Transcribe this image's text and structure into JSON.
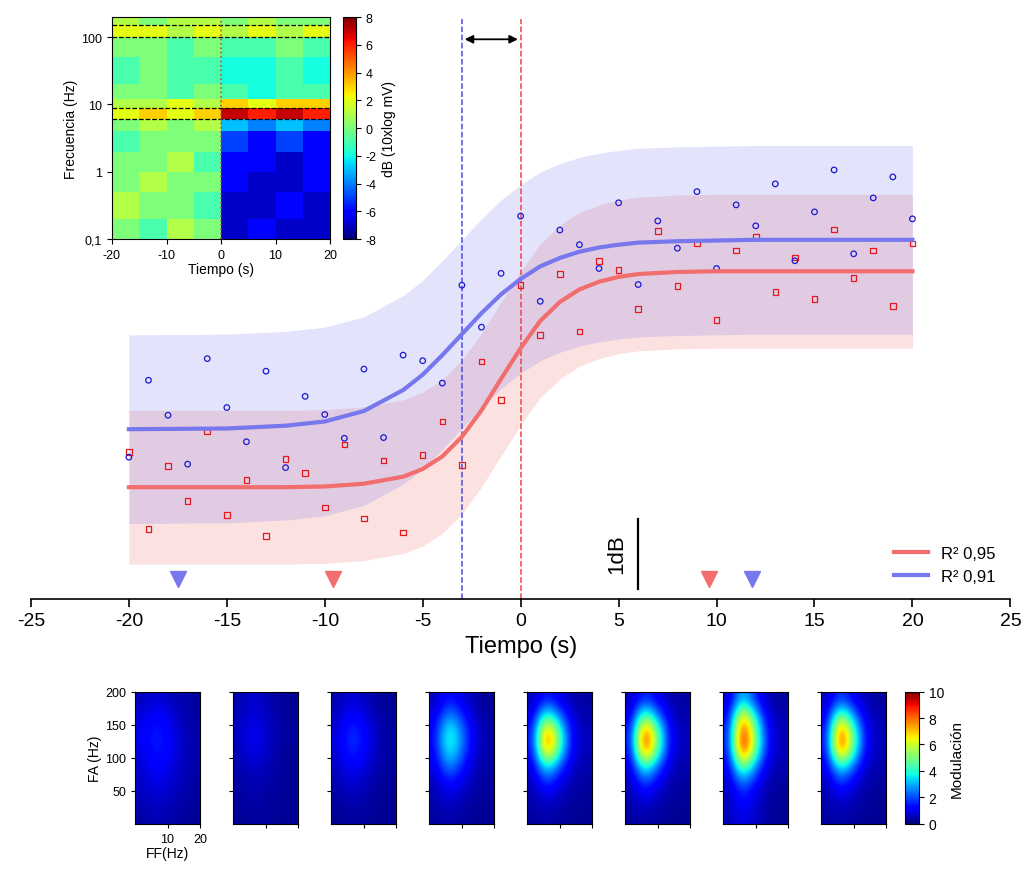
{
  "chart_data": [
    {
      "type": "scatter",
      "xlabel": "Tiempo (s)",
      "xlim": [
        -25,
        25
      ],
      "xticks": [
        -25,
        -20,
        -15,
        -10,
        -5,
        0,
        5,
        10,
        15,
        20,
        25
      ],
      "ylim": [
        0,
        8.3
      ],
      "tick_labels": "x",
      "legend": "lower right",
      "series": [
        {
          "type": "scatter",
          "color": "#e41a1c",
          "marker": "square",
          "x": [
            -20,
            -19,
            -18,
            -17,
            -16,
            -15,
            -14,
            -13,
            -12,
            -11,
            -10,
            -9,
            -8,
            -7,
            -6,
            -5,
            -4,
            -3,
            -2,
            -1,
            0,
            1,
            2,
            3,
            4,
            5,
            6,
            7,
            8,
            9,
            10,
            11,
            12,
            13,
            14,
            15,
            16,
            17,
            18,
            19,
            20
          ],
          "values": [
            2.1,
            1.0,
            1.9,
            1.4,
            2.4,
            1.2,
            1.7,
            0.9,
            2.0,
            1.8,
            1.31,
            2.21,
            1.15,
            1.98,
            0.95,
            2.06,
            2.54,
            1.92,
            3.4,
            2.85,
            4.49,
            3.78,
            4.65,
            3.83,
            4.84,
            4.71,
            4.15,
            5.27,
            4.48,
            5.09,
            3.99,
            4.99,
            5.19,
            4.39,
            4.89,
            4.29,
            5.29,
            4.59,
            4.99,
            4.19,
            5.09
          ]
        },
        {
          "type": "scatter",
          "color": "#1a1ad0",
          "marker": "circle",
          "x": [
            -20,
            -19,
            -18,
            -17,
            -16,
            -15,
            -14,
            -13,
            -12,
            -11,
            -10,
            -9,
            -8,
            -7,
            -6,
            -5,
            -4,
            -3,
            -2,
            -1,
            0,
            1,
            2,
            3,
            4,
            5,
            6,
            7,
            8,
            9,
            10,
            11,
            12,
            13,
            14,
            15,
            16,
            17,
            18,
            19,
            20
          ],
          "values": [
            2.03,
            3.13,
            2.63,
            1.93,
            3.44,
            2.74,
            2.25,
            3.26,
            1.88,
            2.9,
            2.64,
            2.3,
            3.29,
            2.31,
            3.49,
            3.41,
            3.09,
            4.49,
            3.89,
            4.66,
            5.48,
            4.26,
            5.28,
            5.07,
            4.73,
            5.67,
            4.5,
            5.41,
            5.02,
            5.83,
            4.73,
            5.64,
            5.34,
            5.94,
            4.84,
            5.54,
            6.14,
            4.94,
            5.74,
            6.04,
            5.44
          ]
        },
        {
          "type": "line",
          "name": "R² 0,95",
          "color": "#f26d6d",
          "band": 1.1,
          "x": [
            -20,
            -15,
            -12,
            -10,
            -8,
            -6,
            -5,
            -4,
            -3,
            -2,
            -1,
            0,
            1,
            2,
            3,
            4,
            5,
            6,
            8,
            10,
            12,
            15,
            20
          ],
          "values": [
            1.6,
            1.6,
            1.6,
            1.61,
            1.65,
            1.75,
            1.86,
            2.04,
            2.32,
            2.7,
            3.15,
            3.59,
            3.98,
            4.25,
            4.43,
            4.54,
            4.61,
            4.65,
            4.68,
            4.69,
            4.69,
            4.69,
            4.69
          ]
        },
        {
          "type": "line",
          "name": "R² 0,91",
          "color": "#7777ee",
          "band": 1.35,
          "x": [
            -20,
            -15,
            -12,
            -10,
            -8,
            -6,
            -5,
            -4,
            -3,
            -2,
            -1,
            0,
            1,
            2,
            3,
            4,
            5,
            6,
            8,
            10,
            12,
            15,
            20
          ],
          "values": [
            2.43,
            2.44,
            2.48,
            2.54,
            2.69,
            2.99,
            3.21,
            3.49,
            3.79,
            4.09,
            4.36,
            4.58,
            4.76,
            4.88,
            4.97,
            5.03,
            5.07,
            5.1,
            5.12,
            5.13,
            5.14,
            5.14,
            5.14
          ]
        }
      ],
      "vlines": [
        {
          "x": -3,
          "color": "#4a4ae6",
          "line_style": "dashed"
        },
        {
          "x": 0,
          "color": "#ee4444",
          "line_style": "dashed"
        }
      ],
      "arrow": [
        -3,
        0
      ],
      "triangles": [
        {
          "x": -17.5,
          "color": "#7777ee"
        },
        {
          "x": -9.6,
          "color": "#f26d6d"
        },
        {
          "x": 9.6,
          "color": "#f26d6d"
        },
        {
          "x": 11.8,
          "color": "#7777ee"
        }
      ],
      "scale_bar": {
        "label": "1dB",
        "x": 6,
        "y": 0.15,
        "length": 1
      }
    },
    {
      "type": "heatmap",
      "xlabel": "Tiempo (s)",
      "ylabel": "Frecuencia (Hz)",
      "log": "y",
      "xlim": [
        -20,
        20
      ],
      "xticks": [
        -20,
        -10,
        0,
        10,
        20
      ],
      "ylim": [
        0.1,
        200
      ],
      "yticks": [
        {
          "value": 0.1,
          "label": "0,1"
        },
        1,
        10,
        100
      ],
      "x_edges": [
        -20,
        -15,
        -10,
        -5,
        0,
        5,
        10,
        15,
        20
      ],
      "y_edges": [
        0.1,
        0.2,
        0.5,
        1,
        2,
        4,
        6,
        9,
        12,
        20,
        50,
        100,
        150,
        200
      ],
      "cells": [
        [
          0,
          -1,
          1,
          0,
          -7,
          -6,
          -7,
          -7
        ],
        [
          1,
          0,
          0,
          -1,
          -7,
          -7,
          -6,
          -7
        ],
        [
          0,
          1,
          0,
          0,
          -6,
          -7,
          -7,
          -6
        ],
        [
          0,
          0,
          1,
          -1,
          -6,
          -6,
          -7,
          -6
        ],
        [
          -1,
          0,
          0,
          0,
          -5,
          -6,
          -5,
          -6
        ],
        [
          0,
          1,
          0,
          1,
          -3,
          -4,
          -3,
          -4
        ],
        [
          2,
          3,
          2,
          3,
          7,
          6,
          7,
          6
        ],
        [
          1,
          1,
          2,
          1,
          3,
          2,
          3,
          3
        ],
        [
          0,
          0,
          -1,
          0,
          -1,
          -2,
          -1,
          -1
        ],
        [
          -1,
          0,
          -1,
          -1,
          -2,
          -2,
          -1,
          -2
        ],
        [
          0,
          0,
          -1,
          0,
          -1,
          -1,
          0,
          -1
        ],
        [
          2,
          2,
          1,
          2,
          1,
          2,
          1,
          2
        ],
        [
          1,
          0,
          1,
          1,
          0,
          1,
          0,
          0
        ]
      ],
      "hlines": [
        6,
        9,
        100,
        150
      ],
      "vline": 0,
      "colorbar": {
        "label": "dB (10xlog mV)",
        "range": [
          -8,
          8
        ],
        "ticks": [
          -8,
          -6,
          -4,
          -2,
          0,
          2,
          4,
          6,
          8
        ]
      }
    },
    {
      "type": "heatmap",
      "xlabel": "FF(Hz)",
      "ylabel": "FA (Hz)",
      "xlim": [
        0,
        20
      ],
      "xticks": [
        10,
        20
      ],
      "ylim": [
        0,
        200
      ],
      "yticks": [
        50,
        100,
        150,
        200
      ],
      "panels": [
        [
          [
            0.3,
            0.5,
            0.4,
            0.3,
            0.2
          ],
          [
            0.5,
            0.7,
            0.6,
            0.4,
            0.3
          ],
          [
            0.6,
            1.0,
            0.8,
            0.5,
            0.3
          ],
          [
            0.7,
            1.2,
            1.0,
            0.5,
            0.4
          ],
          [
            0.9,
            1.5,
            1.3,
            0.6,
            0.4
          ],
          [
            1.0,
            1.6,
            1.2,
            0.6,
            0.4
          ],
          [
            0.8,
            1.3,
            1.0,
            0.5,
            0.3
          ],
          [
            0.5,
            0.8,
            0.6,
            0.4,
            0.3
          ]
        ],
        [
          [
            0.2,
            0.3,
            0.3,
            0.2,
            0.2
          ],
          [
            0.3,
            0.4,
            0.3,
            0.2,
            0.2
          ],
          [
            0.3,
            0.5,
            0.4,
            0.3,
            0.2
          ],
          [
            0.4,
            0.7,
            0.5,
            0.3,
            0.2
          ],
          [
            0.5,
            1.0,
            0.7,
            0.3,
            0.2
          ],
          [
            0.6,
            1.1,
            0.8,
            0.4,
            0.3
          ],
          [
            0.5,
            0.9,
            0.6,
            0.3,
            0.2
          ],
          [
            0.4,
            0.8,
            0.5,
            0.3,
            0.2
          ]
        ],
        [
          [
            0.2,
            0.3,
            0.3,
            0.2,
            0.2
          ],
          [
            0.3,
            0.5,
            0.4,
            0.2,
            0.2
          ],
          [
            0.4,
            0.8,
            0.6,
            0.3,
            0.2
          ],
          [
            0.6,
            1.2,
            0.9,
            0.4,
            0.3
          ],
          [
            0.8,
            1.7,
            1.3,
            0.5,
            0.3
          ],
          [
            0.8,
            1.8,
            1.4,
            0.5,
            0.3
          ],
          [
            0.6,
            1.3,
            1.0,
            0.4,
            0.3
          ],
          [
            0.4,
            0.8,
            0.6,
            0.3,
            0.2
          ]
        ],
        [
          [
            0.3,
            0.4,
            0.3,
            0.2,
            0.2
          ],
          [
            0.4,
            0.8,
            0.5,
            0.3,
            0.2
          ],
          [
            0.5,
            1.4,
            0.9,
            0.4,
            0.3
          ],
          [
            0.8,
            2.8,
            1.6,
            0.5,
            0.3
          ],
          [
            1.1,
            4.2,
            2.4,
            0.7,
            0.4
          ],
          [
            1.2,
            4.5,
            2.6,
            0.8,
            0.4
          ],
          [
            0.9,
            3.0,
            1.8,
            0.6,
            0.3
          ],
          [
            0.5,
            1.5,
            0.9,
            0.4,
            0.2
          ]
        ],
        [
          [
            0.3,
            0.4,
            0.3,
            0.2,
            0.2
          ],
          [
            0.4,
            0.8,
            0.5,
            0.3,
            0.2
          ],
          [
            0.5,
            1.8,
            0.9,
            0.4,
            0.3
          ],
          [
            0.8,
            4.0,
            2.0,
            0.6,
            0.4
          ],
          [
            1.2,
            8.5,
            4.2,
            0.9,
            0.5
          ],
          [
            1.3,
            9.0,
            4.5,
            1.0,
            0.5
          ],
          [
            0.9,
            5.0,
            2.5,
            0.7,
            0.4
          ],
          [
            0.5,
            1.6,
            0.9,
            0.4,
            0.3
          ]
        ],
        [
          [
            0.3,
            0.4,
            0.3,
            0.2,
            0.2
          ],
          [
            0.4,
            0.9,
            0.5,
            0.3,
            0.2
          ],
          [
            0.5,
            2.0,
            1.0,
            0.4,
            0.3
          ],
          [
            0.8,
            4.5,
            2.2,
            0.6,
            0.4
          ],
          [
            1.2,
            9.2,
            4.6,
            0.9,
            0.5
          ],
          [
            1.3,
            9.6,
            4.8,
            1.0,
            0.5
          ],
          [
            0.9,
            5.5,
            2.7,
            0.7,
            0.4
          ],
          [
            0.5,
            1.8,
            1.0,
            0.4,
            0.3
          ]
        ],
        [
          [
            0.5,
            1.0,
            0.6,
            0.3,
            0.2
          ],
          [
            0.5,
            1.5,
            0.8,
            0.3,
            0.2
          ],
          [
            0.6,
            2.5,
            1.2,
            0.4,
            0.3
          ],
          [
            0.9,
            5.5,
            2.6,
            0.6,
            0.4
          ],
          [
            1.3,
            9.8,
            4.8,
            1.0,
            0.5
          ],
          [
            1.4,
            10.0,
            5.0,
            1.0,
            0.5
          ],
          [
            1.0,
            8.0,
            3.5,
            0.8,
            0.4
          ],
          [
            0.6,
            3.5,
            1.5,
            0.4,
            0.3
          ]
        ],
        [
          [
            0.3,
            0.4,
            0.3,
            0.2,
            0.2
          ],
          [
            0.4,
            0.8,
            0.5,
            0.3,
            0.2
          ],
          [
            0.5,
            1.8,
            0.9,
            0.4,
            0.3
          ],
          [
            0.8,
            4.2,
            2.1,
            0.6,
            0.4
          ],
          [
            1.2,
            9.0,
            4.4,
            0.9,
            0.5
          ],
          [
            1.3,
            9.5,
            4.7,
            1.0,
            0.5
          ],
          [
            0.9,
            6.0,
            2.8,
            0.7,
            0.4
          ],
          [
            0.5,
            2.0,
            1.0,
            0.4,
            0.3
          ]
        ]
      ],
      "colorbar": {
        "label": "Modulación",
        "range": [
          0,
          10
        ],
        "ticks": [
          0,
          2,
          4,
          6,
          8,
          10
        ]
      }
    }
  ]
}
